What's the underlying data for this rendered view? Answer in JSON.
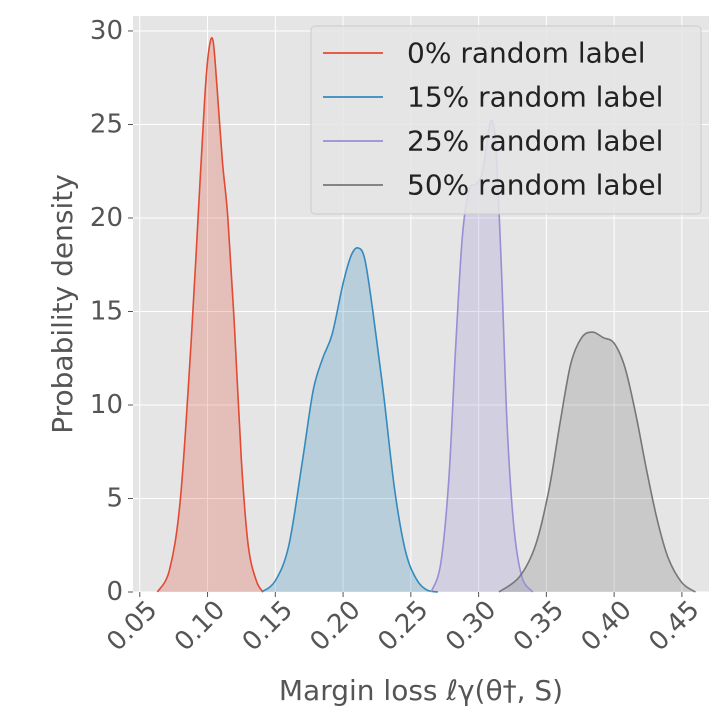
{
  "chart_data": {
    "type": "area",
    "title": "",
    "xlabel": "Margin loss ℓγ(θ†, S)",
    "ylabel": "Probability density",
    "xlim": [
      0.045,
      0.47
    ],
    "ylim": [
      0,
      30.8
    ],
    "xticks": [
      0.05,
      0.1,
      0.15,
      0.2,
      0.25,
      0.3,
      0.35,
      0.4,
      0.45
    ],
    "xtick_labels": [
      "0.05",
      "0.10",
      "0.15",
      "0.20",
      "0.25",
      "0.30",
      "0.35",
      "0.40",
      "0.45"
    ],
    "yticks": [
      0,
      5,
      10,
      15,
      20,
      25,
      30
    ],
    "ytick_labels": [
      "0",
      "5",
      "10",
      "15",
      "20",
      "25",
      "30"
    ],
    "grid": true,
    "legend_position": "top-right",
    "series": [
      {
        "name": "0% random label",
        "color": "#E24A33",
        "x": [
          0.063,
          0.072,
          0.08,
          0.088,
          0.093,
          0.098,
          0.101,
          0.104,
          0.107,
          0.111,
          0.115,
          0.12,
          0.125,
          0.13,
          0.136,
          0.141
        ],
        "y": [
          0,
          1.2,
          5.0,
          13.5,
          20.0,
          26.5,
          29.0,
          29.5,
          27.0,
          23.0,
          20.0,
          14.0,
          7.0,
          2.5,
          0.6,
          0
        ]
      },
      {
        "name": "15% random label",
        "color": "#348ABD",
        "x": [
          0.14,
          0.15,
          0.16,
          0.17,
          0.178,
          0.185,
          0.192,
          0.2,
          0.206,
          0.211,
          0.216,
          0.222,
          0.23,
          0.238,
          0.246,
          0.254,
          0.262,
          0.27
        ],
        "y": [
          0,
          0.6,
          2.5,
          7.0,
          10.8,
          12.5,
          13.8,
          16.5,
          18.0,
          18.4,
          17.8,
          15.0,
          10.5,
          5.5,
          2.2,
          0.7,
          0.1,
          0
        ]
      },
      {
        "name": "25% random label",
        "color": "#988ED5",
        "x": [
          0.265,
          0.272,
          0.278,
          0.283,
          0.288,
          0.293,
          0.298,
          0.303,
          0.307,
          0.31,
          0.313,
          0.317,
          0.321,
          0.326,
          0.332,
          0.34
        ],
        "y": [
          0,
          1.5,
          6.0,
          13.0,
          19.0,
          21.5,
          21.8,
          22.5,
          24.5,
          25.2,
          23.5,
          17.0,
          9.0,
          3.5,
          0.8,
          0
        ]
      },
      {
        "name": "50% random label",
        "color": "#777777",
        "x": [
          0.315,
          0.33,
          0.342,
          0.352,
          0.36,
          0.368,
          0.376,
          0.384,
          0.392,
          0.4,
          0.408,
          0.416,
          0.424,
          0.432,
          0.44,
          0.45,
          0.46
        ],
        "y": [
          0,
          0.8,
          2.5,
          5.5,
          9.0,
          12.2,
          13.6,
          13.9,
          13.6,
          13.3,
          12.0,
          9.5,
          6.5,
          3.8,
          1.8,
          0.5,
          0
        ]
      }
    ]
  }
}
